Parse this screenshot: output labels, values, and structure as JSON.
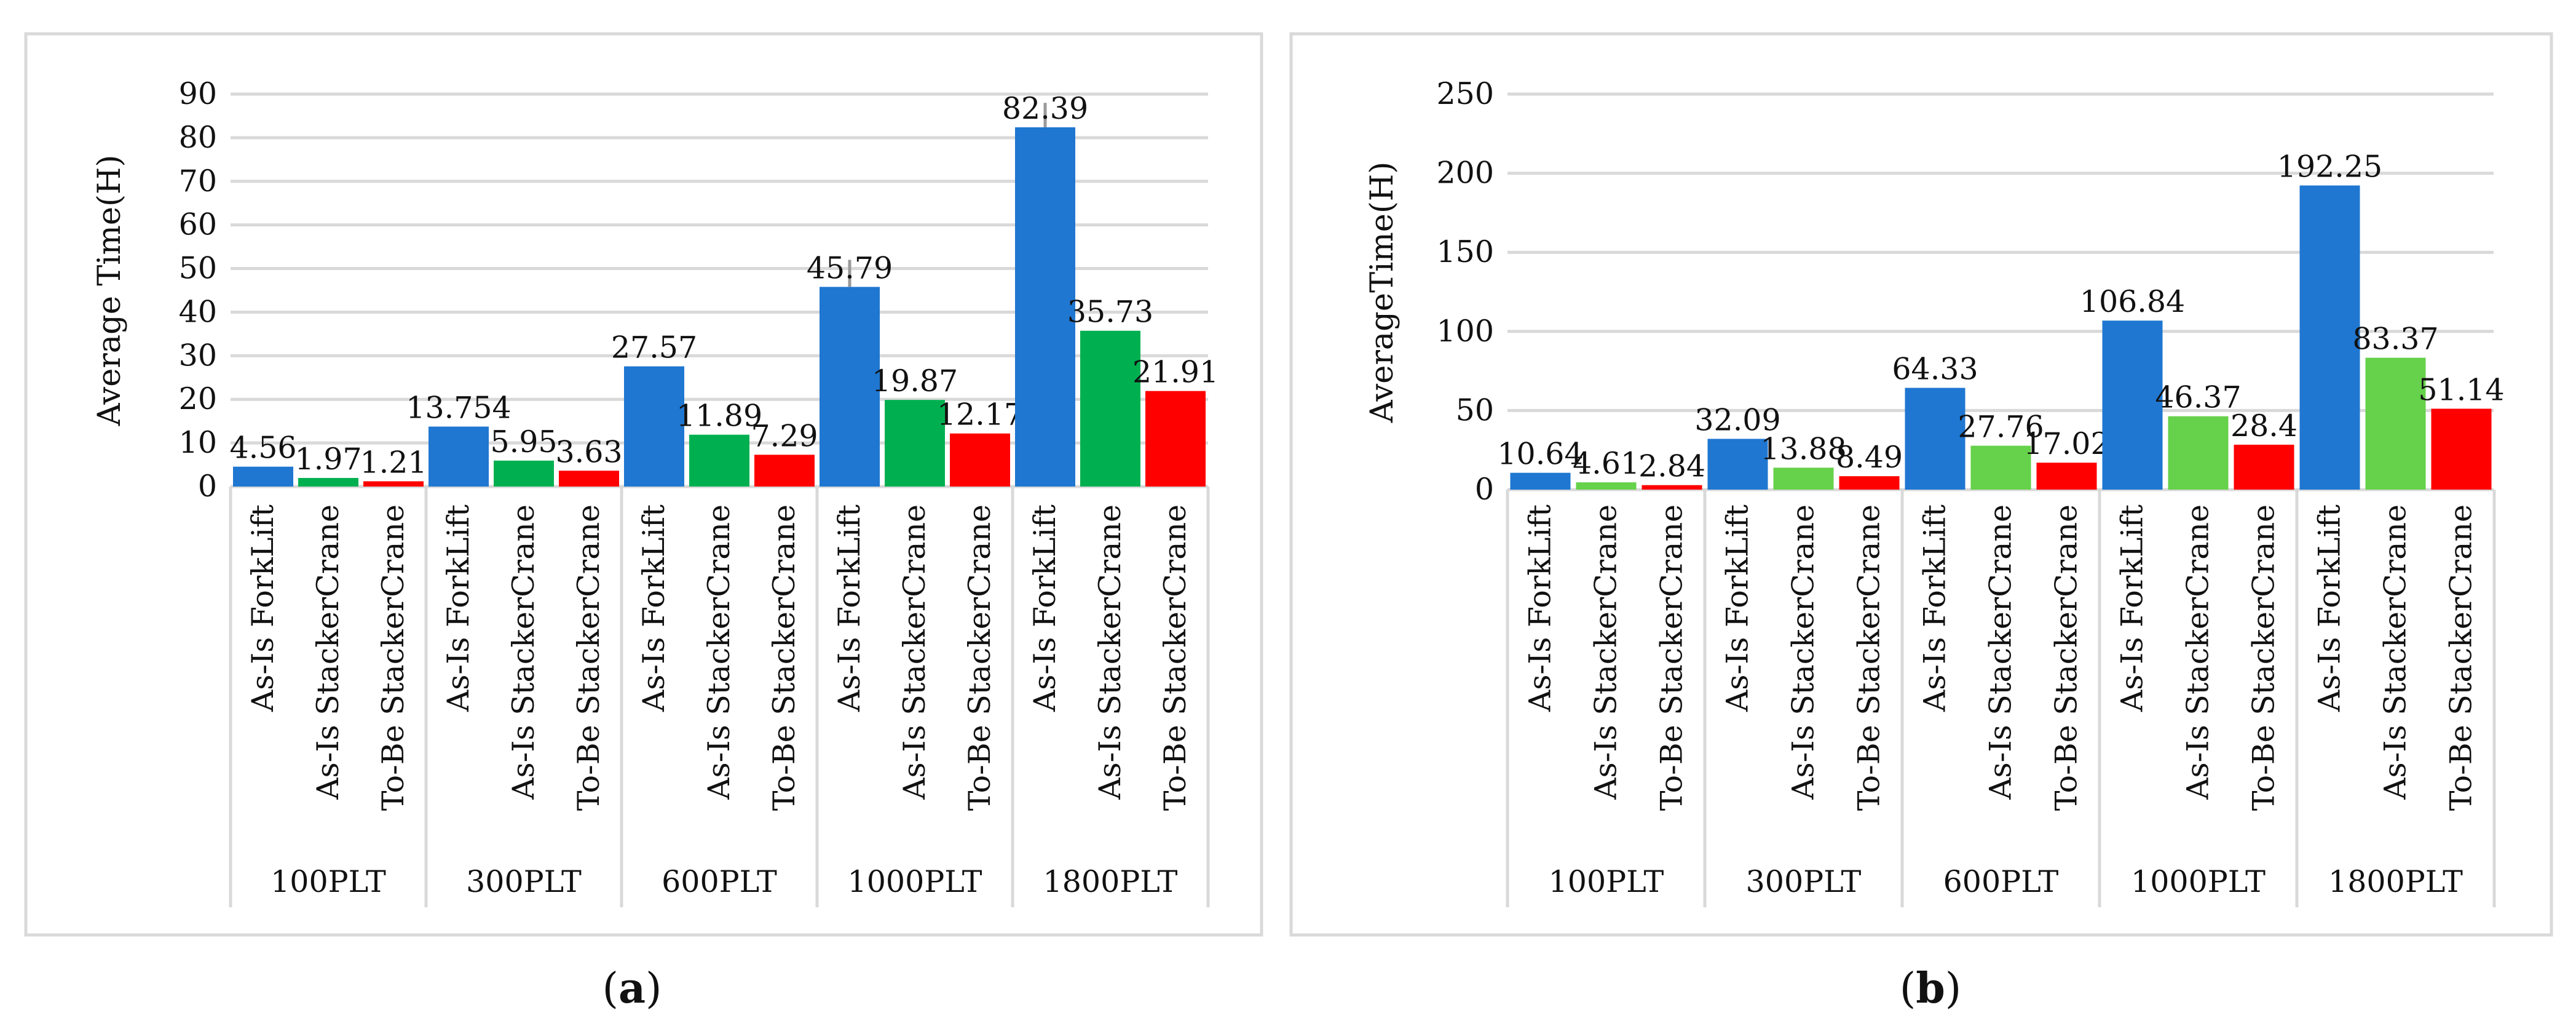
{
  "chart_data": [
    {
      "type": "bar",
      "caption": "a",
      "ylabel": "Average Time(H)",
      "ylim": [
        0,
        90
      ],
      "yticks": [
        0,
        10,
        20,
        30,
        40,
        50,
        60,
        70,
        80,
        90
      ],
      "ytick_labels": [
        "0",
        "10",
        "20",
        "30",
        "40",
        "50",
        "60",
        "70",
        "80",
        "90"
      ],
      "groups": [
        "100PLT",
        "300PLT",
        "600PLT",
        "1000PLT",
        "1800PLT"
      ],
      "series_names": [
        "As-Is ForkLift",
        "As-Is StackerCrane",
        "To-Be StackerCrane"
      ],
      "series_colors": [
        "#1f77d1",
        "#00b050",
        "#ff0000"
      ],
      "series": [
        {
          "name": "As-Is ForkLift",
          "color": "#1f77d1",
          "values": [
            4.56,
            13.754,
            27.57,
            45.79,
            82.39
          ],
          "labels": [
            "4.56",
            "13.754",
            "27.57",
            "45.79",
            "82.39"
          ],
          "error_bar_tops": [
            null,
            null,
            null,
            52,
            88
          ]
        },
        {
          "name": "As-Is StackerCrane",
          "color": "#00b050",
          "values": [
            1.97,
            5.95,
            11.89,
            19.87,
            35.73
          ],
          "labels": [
            "1.97",
            "5.95",
            "11.89",
            "19.87",
            "35.73"
          ],
          "error_bar_tops": [
            null,
            null,
            null,
            null,
            null
          ]
        },
        {
          "name": "To-Be StackerCrane",
          "color": "#ff0000",
          "values": [
            1.21,
            3.63,
            7.29,
            12.17,
            21.91
          ],
          "labels": [
            "1.21",
            "3.63",
            "7.29",
            "12.17",
            "21.91"
          ],
          "error_bar_tops": [
            null,
            null,
            null,
            null,
            null
          ]
        }
      ],
      "grid": true,
      "legend": "none"
    },
    {
      "type": "bar",
      "caption": "b",
      "ylabel": "AverageTime(H)",
      "ylim": [
        0,
        250
      ],
      "yticks": [
        0,
        50,
        100,
        150,
        200,
        250
      ],
      "ytick_labels": [
        "0",
        "50",
        "100",
        "150",
        "200",
        "250"
      ],
      "groups": [
        "100PLT",
        "300PLT",
        "600PLT",
        "1000PLT",
        "1800PLT"
      ],
      "series_names": [
        "As-Is ForkLift",
        "As-Is StackerCrane",
        "To-Be StackerCrane"
      ],
      "series_colors": [
        "#1f77d1",
        "#66d14a",
        "#ff0000"
      ],
      "series": [
        {
          "name": "As-Is ForkLift",
          "color": "#1f77d1",
          "values": [
            10.64,
            32.09,
            64.33,
            106.84,
            192.25
          ],
          "labels": [
            "10.64",
            "32.09",
            "64.33",
            "106.84",
            "192.25"
          ],
          "error_bar_tops": [
            null,
            null,
            null,
            null,
            null
          ]
        },
        {
          "name": "As-Is StackerCrane",
          "color": "#66d14a",
          "values": [
            4.61,
            13.88,
            27.76,
            46.37,
            83.37
          ],
          "labels": [
            "4.61",
            "13.88",
            "27.76",
            "46.37",
            "83.37"
          ],
          "error_bar_tops": [
            null,
            null,
            null,
            null,
            null
          ]
        },
        {
          "name": "To-Be StackerCrane",
          "color": "#ff0000",
          "values": [
            2.84,
            8.49,
            17.02,
            28.4,
            51.14
          ],
          "labels": [
            "2.84",
            "8.49",
            "17.02",
            "28.4",
            "51.14"
          ],
          "error_bar_tops": [
            null,
            null,
            null,
            null,
            null
          ]
        }
      ],
      "grid": true,
      "legend": "none"
    }
  ]
}
